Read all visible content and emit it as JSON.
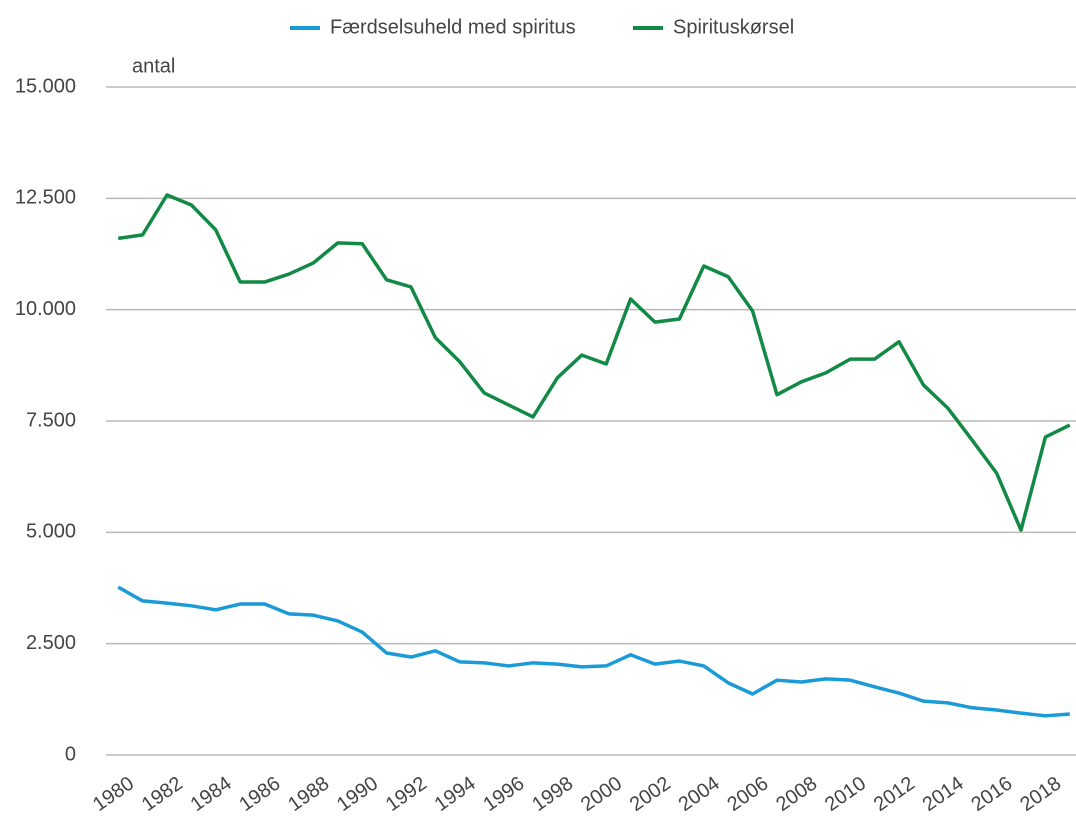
{
  "chart_data": {
    "type": "line",
    "y_label": "antal",
    "x": [
      1980,
      1981,
      1982,
      1983,
      1984,
      1985,
      1986,
      1987,
      1988,
      1989,
      1990,
      1991,
      1992,
      1993,
      1994,
      1995,
      1996,
      1997,
      1998,
      1999,
      2000,
      2001,
      2002,
      2003,
      2004,
      2005,
      2006,
      2007,
      2008,
      2009,
      2010,
      2011,
      2012,
      2013,
      2014,
      2015,
      2016,
      2017,
      2018,
      2019
    ],
    "series": [
      {
        "name": "Færdselsuheld med spiritus",
        "color": "#1a9ad6",
        "values": [
          3770,
          3460,
          3410,
          3350,
          3260,
          3390,
          3390,
          3170,
          3140,
          3010,
          2760,
          2290,
          2200,
          2340,
          2090,
          2070,
          2000,
          2070,
          2040,
          1980,
          2000,
          2250,
          2040,
          2110,
          2000,
          1620,
          1370,
          1680,
          1640,
          1710,
          1680,
          1530,
          1390,
          1210,
          1170,
          1060,
          1010,
          940,
          880,
          920
        ]
      },
      {
        "name": "Spirituskørsel",
        "color": "#128a45",
        "values": [
          11600,
          11680,
          12575,
          12350,
          11790,
          10620,
          10620,
          10800,
          11050,
          11500,
          11480,
          10670,
          10510,
          9370,
          8830,
          8130,
          7860,
          7590,
          8470,
          8980,
          8780,
          10240,
          9720,
          9790,
          10980,
          10740,
          9970,
          8090,
          8380,
          8580,
          8890,
          8890,
          9280,
          8310,
          7790,
          7070,
          6330,
          5050,
          7140,
          7410
        ]
      }
    ],
    "xlim": [
      1979.5,
      2019.5
    ],
    "xticks": [
      1980,
      1982,
      1984,
      1986,
      1988,
      1990,
      1992,
      1994,
      1996,
      1998,
      2000,
      2002,
      2004,
      2006,
      2008,
      2010,
      2012,
      2014,
      2016,
      2018
    ],
    "ylim": [
      0,
      15000
    ],
    "yticks": [
      {
        "value": 0,
        "label": "0"
      },
      {
        "value": 2500,
        "label": "2.500"
      },
      {
        "value": 5000,
        "label": "5.000"
      },
      {
        "value": 7500,
        "label": "7.500"
      },
      {
        "value": 10000,
        "label": "10.000"
      },
      {
        "value": 12500,
        "label": "12.500"
      },
      {
        "value": 15000,
        "label": "15.000"
      }
    ],
    "grid": true,
    "legend": "top"
  }
}
